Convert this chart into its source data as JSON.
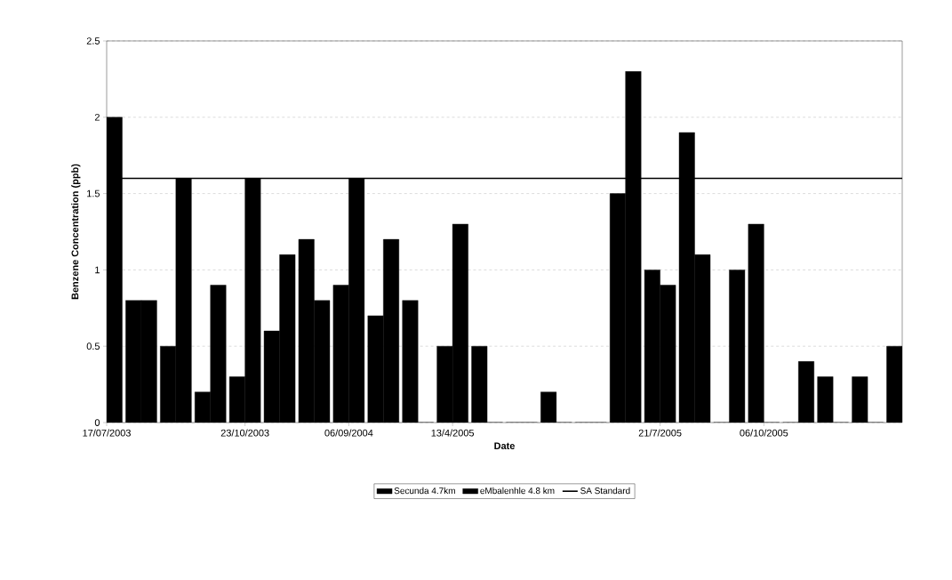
{
  "chart_data": {
    "type": "bar",
    "xlabel": "Date",
    "ylabel": "Benzene Concentration (ppb)",
    "categories": [
      "17/07/2003",
      null,
      null,
      null,
      "23/10/2003",
      null,
      null,
      "06/09/2004",
      null,
      null,
      "13/4/2005",
      null,
      null,
      null,
      null,
      null,
      "21/7/2005",
      null,
      null,
      "06/10/2005",
      null,
      null,
      null,
      null
    ],
    "series": [
      {
        "name": "Secunda 4.7km",
        "color": "#000000",
        "values": [
          null,
          0.8,
          0.5,
          0.2,
          0.3,
          0.6,
          1.2,
          0.9,
          0.7,
          0.8,
          0.5,
          0.5,
          0,
          0.2,
          0,
          1.5,
          1.0,
          1.9,
          0,
          1.3,
          0,
          0.3,
          0.3,
          0.5
        ]
      },
      {
        "name": "eMbalenhle 4.8 km",
        "color": "#000000",
        "values": [
          2.0,
          0.8,
          1.6,
          0.9,
          1.6,
          1.1,
          0.8,
          1.6,
          1.2,
          0,
          1.3,
          0,
          0,
          0,
          0,
          2.3,
          0.9,
          1.1,
          1.0,
          0,
          0.4,
          0,
          0,
          null
        ]
      }
    ],
    "ylim": [
      0,
      2.5
    ],
    "yticks": [
      0,
      0.5,
      1,
      1.5,
      2,
      2.5
    ],
    "grid": "y",
    "legend": "bottom",
    "ref_lines": [
      {
        "axis": "y",
        "value": 1.6,
        "label": "SA Standard",
        "color": "#000000"
      }
    ]
  }
}
